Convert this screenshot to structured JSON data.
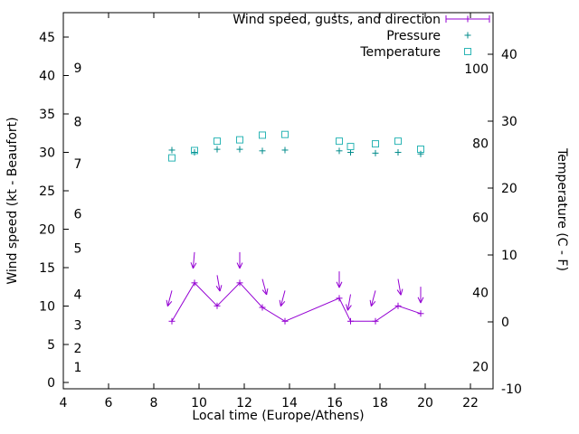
{
  "chart_data": {
    "type": "line",
    "title": "",
    "grid": false,
    "legend_position": "top-right-inside",
    "background": "#ffffff",
    "legend": [
      {
        "label": "Wind speed, gusts, and direction",
        "sample": "errorline-plus",
        "color": "#9400d3"
      },
      {
        "label": "Pressure",
        "sample": "plus",
        "color": "#008b8b"
      },
      {
        "label": "Temperature",
        "sample": "open-square",
        "color": "#2cb5b5"
      }
    ],
    "x_axis": {
      "label": "Local time (Europe/Athens)",
      "range": [
        4,
        23
      ],
      "ticks": [
        4,
        6,
        8,
        10,
        12,
        14,
        16,
        18,
        20,
        22
      ]
    },
    "y_left_axis": {
      "label": "Wind speed (kt - Beaufort)",
      "range": [
        -0.8,
        48.2
      ],
      "ticks": [
        0,
        5,
        10,
        15,
        20,
        25,
        30,
        35,
        40,
        45
      ],
      "beaufort_labels": [
        {
          "label": "1",
          "kt": 2
        },
        {
          "label": "2",
          "kt": 4.5
        },
        {
          "label": "3",
          "kt": 7.5
        },
        {
          "label": "4",
          "kt": 11.5
        },
        {
          "label": "5",
          "kt": 17.5
        },
        {
          "label": "6",
          "kt": 22
        },
        {
          "label": "7",
          "kt": 28.5
        },
        {
          "label": "8",
          "kt": 34
        },
        {
          "label": "9",
          "kt": 41
        }
      ]
    },
    "y_right_axis": {
      "label": "Temperature (C - F)",
      "range": [
        -10,
        46.2
      ],
      "ticks": [
        -10,
        0,
        10,
        20,
        30,
        40
      ],
      "fahrenheit_labels": [
        {
          "label": "20",
          "c": -6.7
        },
        {
          "label": "40",
          "c": 4.4
        },
        {
          "label": "60",
          "c": 15.6
        },
        {
          "label": "80",
          "c": 26.7
        },
        {
          "label": "100",
          "c": 37.8
        }
      ]
    },
    "x": [
      8.8,
      9.8,
      10.8,
      11.8,
      12.8,
      13.8,
      16.2,
      16.7,
      17.8,
      18.8,
      19.8
    ],
    "series": [
      {
        "name": "wind-speed",
        "axis": "left",
        "style": "line-plus",
        "color": "#9400d3",
        "values": [
          8,
          13,
          10,
          13,
          9.8,
          8,
          11,
          8,
          8,
          10,
          9
        ]
      },
      {
        "name": "wind-gusts-direction",
        "axis": "left",
        "style": "arrow",
        "color": "#9400d3",
        "values": [
          12,
          17,
          14,
          17,
          13.5,
          12,
          14.5,
          11.5,
          12,
          13.5,
          12.5
        ],
        "angles_deg": [
          -105,
          -95,
          -80,
          -90,
          -75,
          -105,
          -90,
          -100,
          -105,
          -80,
          -90
        ]
      },
      {
        "name": "pressure",
        "axis": "left",
        "style": "plus",
        "color": "#008b8b",
        "values": [
          30.3,
          30.0,
          30.4,
          30.4,
          30.2,
          30.3,
          30.2,
          30.0,
          29.9,
          30.0,
          29.8
        ]
      },
      {
        "name": "temperature",
        "axis": "right",
        "style": "open-square",
        "color": "#2cb5b5",
        "values": [
          24.5,
          25.6,
          27.0,
          27.2,
          27.9,
          28.0,
          27.0,
          26.2,
          26.6,
          27.0,
          25.8
        ]
      }
    ]
  }
}
